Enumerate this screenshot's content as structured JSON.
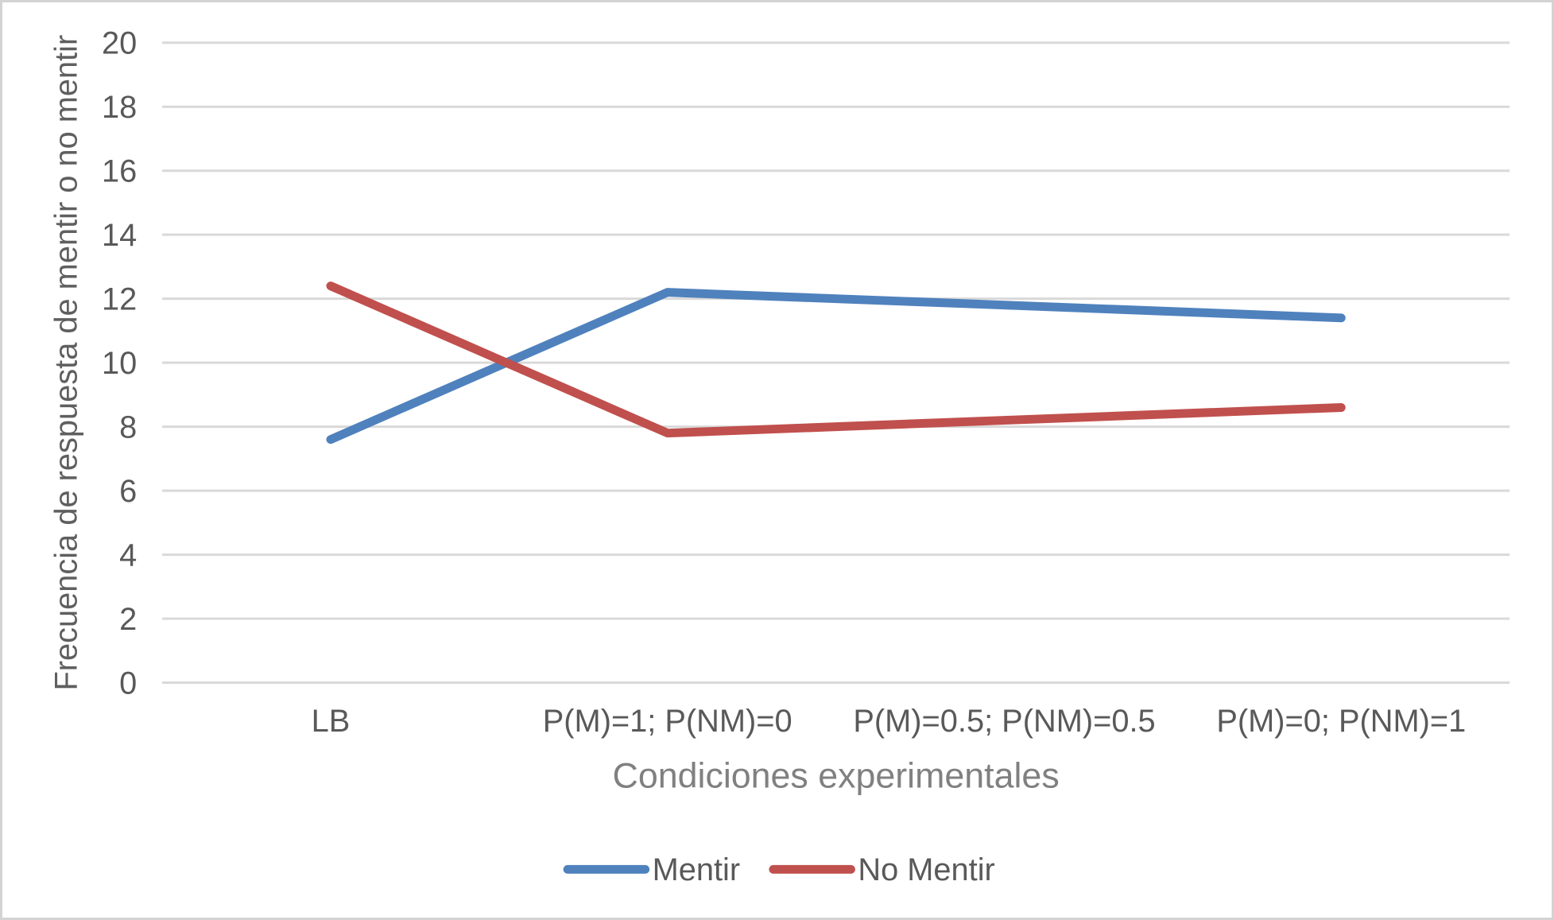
{
  "chart_data": {
    "type": "line",
    "title": "",
    "categories": [
      "LB",
      "P(M)=1; P(NM)=0",
      "P(M)=0.5; P(NM)=0.5",
      "P(M)=0; P(NM)=1"
    ],
    "series": [
      {
        "name": "Mentir",
        "color": "#4F81BD",
        "values": [
          7.6,
          12.2,
          11.8,
          11.4
        ]
      },
      {
        "name": "No Mentir",
        "color": "#C0504D",
        "values": [
          12.4,
          7.8,
          8.2,
          8.6
        ]
      }
    ],
    "xlabel": "Condiciones experimentales",
    "ylabel": "Frecuencia de respuesta de mentir o no mentir",
    "ylim": [
      0,
      20
    ],
    "ytick_step": 2,
    "ytick_labels": [
      "0",
      "2",
      "4",
      "6",
      "8",
      "10",
      "12",
      "14",
      "16",
      "18",
      "20"
    ],
    "grid": true,
    "legend_position": "bottom",
    "markers": false
  },
  "colors": {
    "gridline": "#D9D9D9",
    "tick_label": "#595959",
    "category_label": "#595959",
    "x_axis_title": "#808080",
    "y_axis_title": "#5F5F5F",
    "legend_text": "#595959",
    "frame_border": "#D3D3D3",
    "background": "#FFFFFF"
  }
}
